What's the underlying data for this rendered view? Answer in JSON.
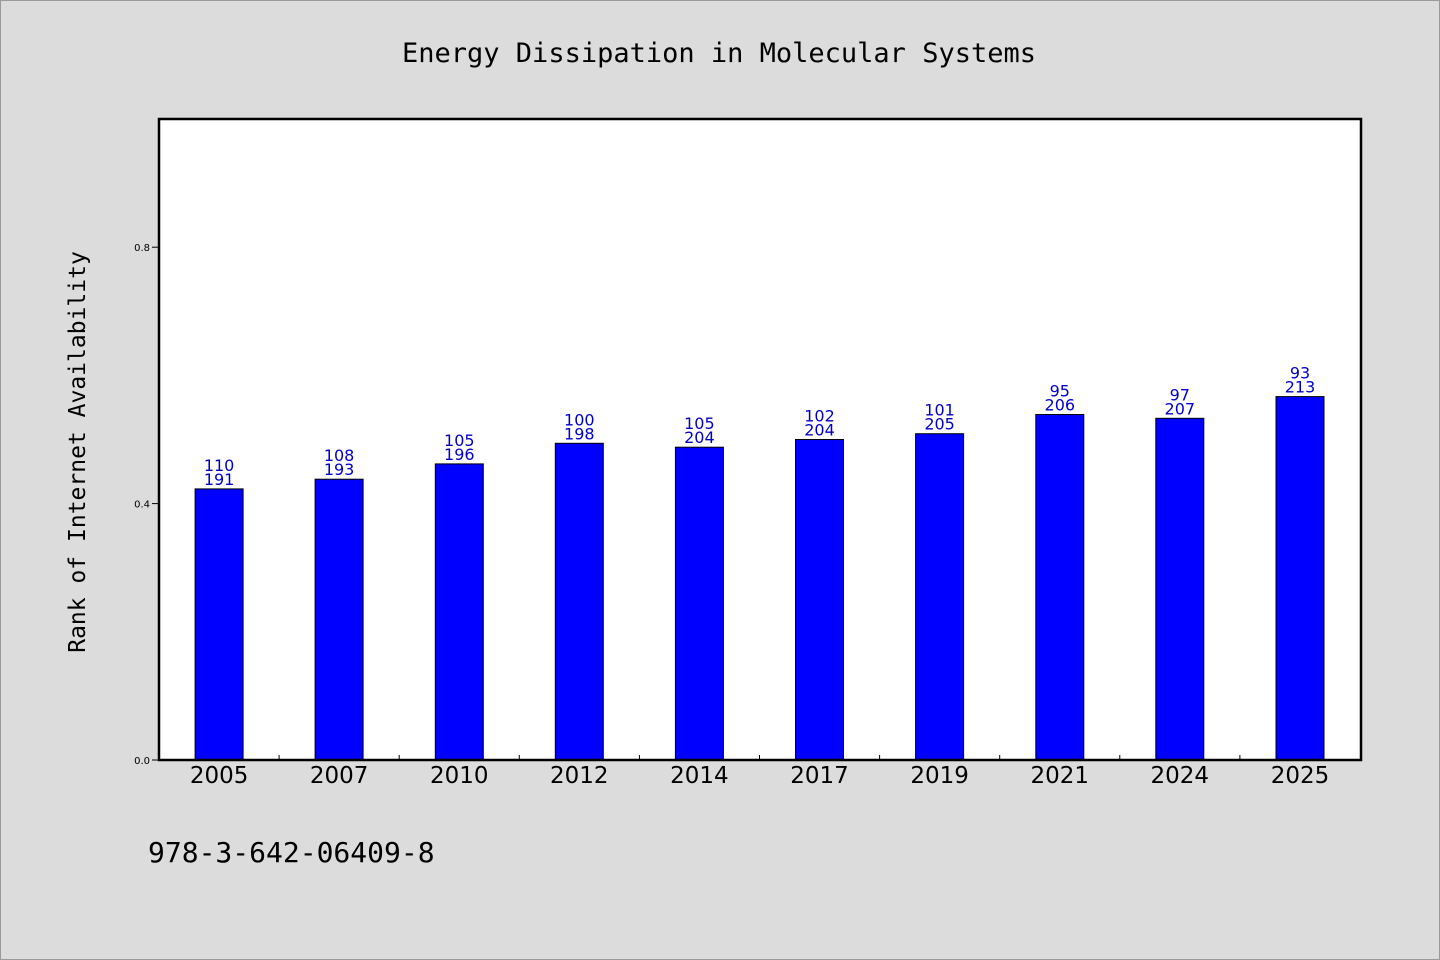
{
  "colors": {
    "background": "#dcdcdc",
    "plot_background": "#ffffff",
    "bar": "#0000ff",
    "data_label": "#0000cc"
  },
  "footnote": "978-3-642-06409-8",
  "chart_data": {
    "type": "bar",
    "title": "Energy Dissipation in Molecular Systems",
    "xlabel": "",
    "ylabel": "Rank of Internet Availability",
    "ylim": [
      0,
      1.0
    ],
    "yticks": [
      0.0,
      0.4,
      0.8
    ],
    "ytick_labels": [
      "0.0",
      "0.4",
      "0.8"
    ],
    "grid": false,
    "legend": "none",
    "categories": [
      "2005",
      "2007",
      "2010",
      "2012",
      "2014",
      "2017",
      "2019",
      "2021",
      "2024",
      "2025"
    ],
    "values": [
      0.423,
      0.438,
      0.462,
      0.494,
      0.488,
      0.5,
      0.509,
      0.539,
      0.533,
      0.567
    ],
    "labels_top": [
      "110",
      "108",
      "105",
      "100",
      "105",
      "102",
      "101",
      "95",
      "97",
      "93"
    ],
    "labels_bottom": [
      "191",
      "193",
      "196",
      "198",
      "204",
      "204",
      "205",
      "206",
      "207",
      "213"
    ]
  }
}
